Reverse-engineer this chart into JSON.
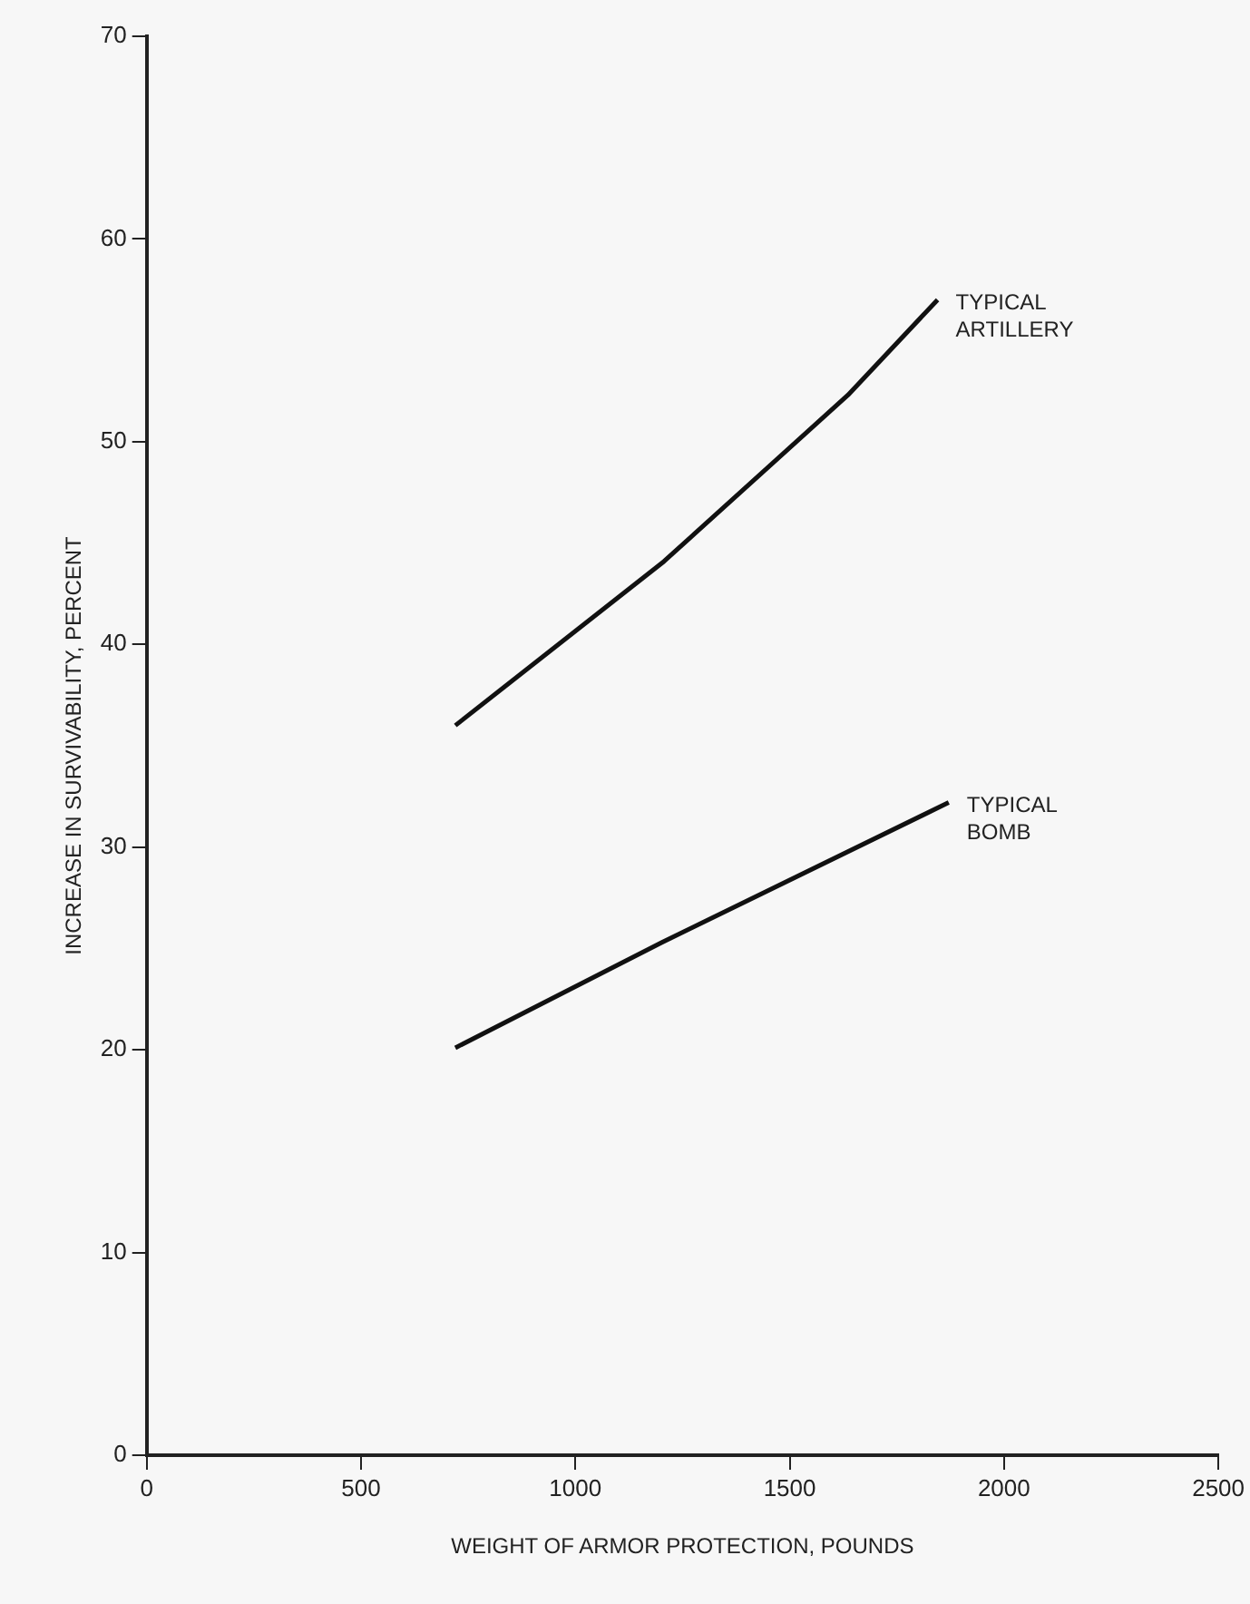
{
  "chart_data": {
    "type": "line",
    "xlabel": "WEIGHT OF ARMOR PROTECTION, POUNDS",
    "ylabel": "INCREASE IN SURVIVABILITY, PERCENT",
    "xlim": [
      0,
      2500
    ],
    "xticks": [
      0,
      500,
      1000,
      1500,
      2000,
      2500
    ],
    "ylim": [
      0,
      70
    ],
    "yticks": [
      0,
      10,
      20,
      30,
      40,
      50,
      60,
      70
    ],
    "grid": false,
    "legend": false,
    "marker": "none",
    "line_style": "solid",
    "series": [
      {
        "name": "TYPICAL ARTILLERY",
        "color": "#111111",
        "x": [
          720,
          1207,
          1636,
          1845
        ],
        "values": [
          36.0,
          44.1,
          52.3,
          57.0
        ]
      },
      {
        "name": "TYPICAL BOMB",
        "color": "#111111",
        "x": [
          720,
          1202,
          1871
        ],
        "values": [
          20.1,
          25.3,
          32.2
        ]
      }
    ]
  }
}
